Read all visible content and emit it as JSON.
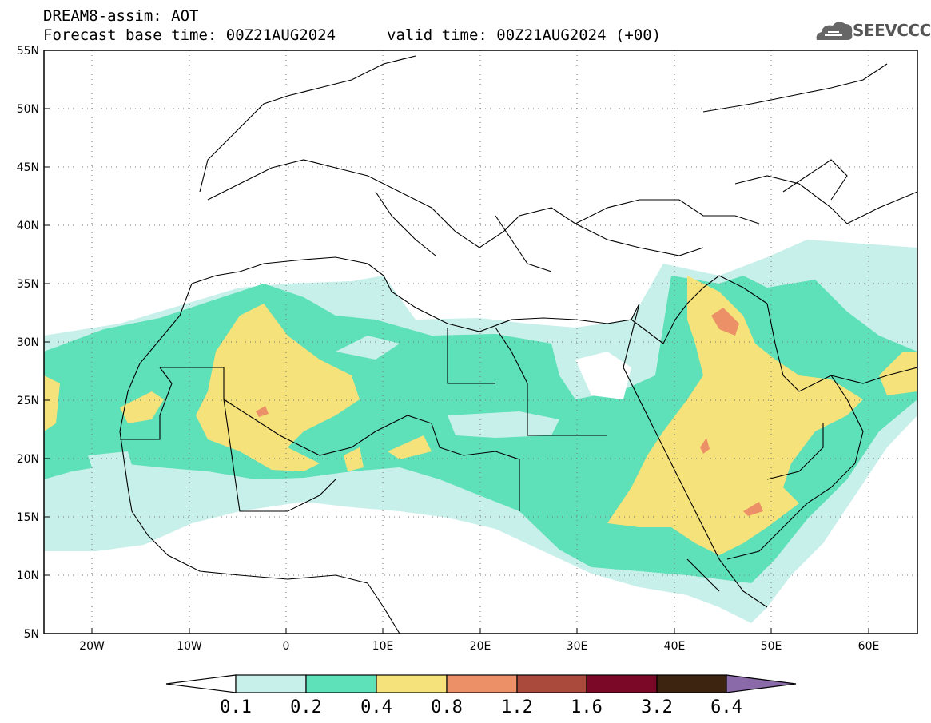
{
  "header": {
    "title": "DREAM8-assim: AOT",
    "base_time": "Forecast base time: 00Z21AUG2024",
    "valid_time": "valid time: 00Z21AUG2024 (+00)"
  },
  "logo": {
    "text": "SEEVCCC",
    "icon": "cloud-logo-icon"
  },
  "map": {
    "lon_range": [
      -25,
      65
    ],
    "lat_range": [
      5,
      55
    ],
    "lat_labels": [
      "5N",
      "10N",
      "15N",
      "20N",
      "25N",
      "30N",
      "35N",
      "40N",
      "45N",
      "50N",
      "55N"
    ],
    "lon_labels": [
      "20W",
      "10W",
      "0",
      "10E",
      "20E",
      "30E",
      "40E",
      "50E",
      "60E"
    ],
    "gridlines": "dotted"
  },
  "legend": {
    "levels": [
      "0.1",
      "0.2",
      "0.4",
      "0.8",
      "1.2",
      "1.6",
      "3.2",
      "6.4"
    ],
    "colors": {
      "below": "#ffffff",
      "c1": "#c8f0ea",
      "c2": "#5ee0b8",
      "c3": "#f6e27a",
      "c4": "#ec9068",
      "c5": "#aa4a3c",
      "c6": "#7a0826",
      "c7": "#3c2410",
      "above": "#8a6aa8"
    }
  }
}
